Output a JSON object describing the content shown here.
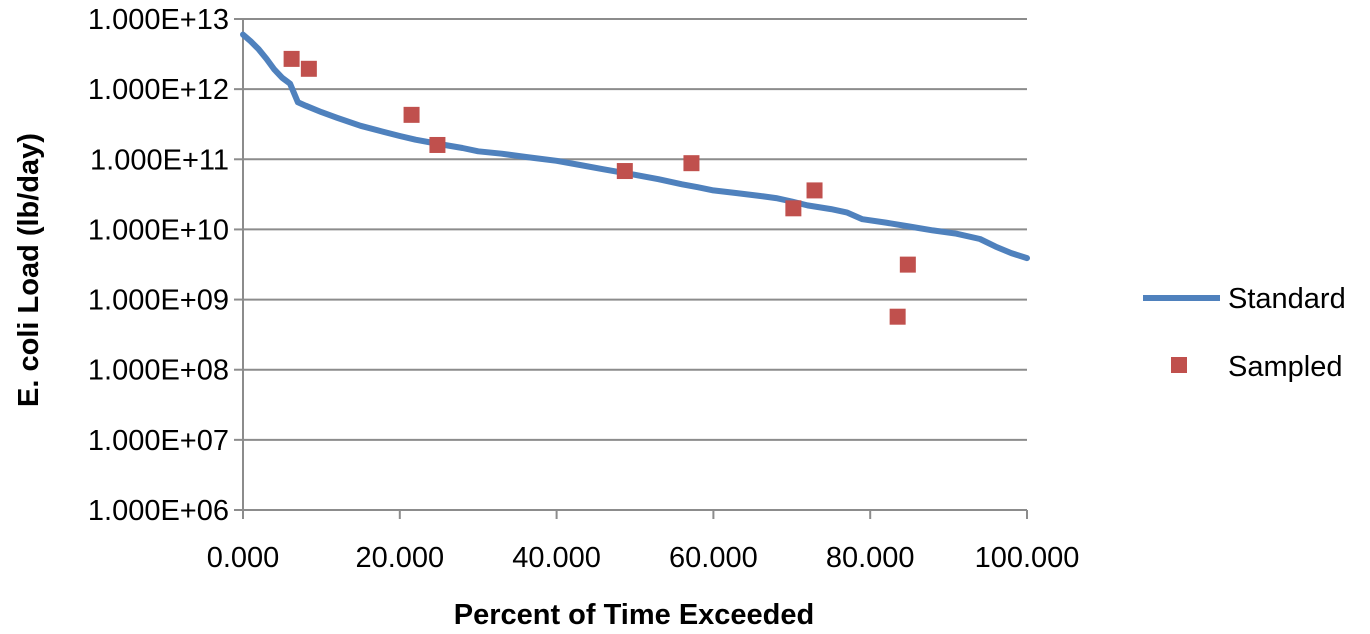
{
  "chart_data": {
    "type": "line",
    "title": "",
    "xlabel": "Percent of Time Exceeded",
    "ylabel": "E. coli Load (lb/day)",
    "x_scale": "linear",
    "y_scale": "log",
    "xlim": [
      0,
      100
    ],
    "ylim": [
      1000000,
      10000000000000
    ],
    "x_ticks": [
      0,
      20,
      40,
      60,
      80,
      100
    ],
    "x_tick_labels": [
      "0.000",
      "20.000",
      "40.000",
      "60.000",
      "80.000",
      "100.000"
    ],
    "y_ticks": [
      1000000,
      10000000,
      100000000,
      1000000000,
      10000000000,
      100000000000,
      1000000000000,
      10000000000000
    ],
    "y_tick_labels": [
      "1.000E+06",
      "1.000E+07",
      "1.000E+08",
      "1.000E+09",
      "1.000E+10",
      "1.000E+11",
      "1.000E+12",
      "1.000E+13"
    ],
    "grid": "horizontal",
    "legend_position": "right",
    "series": [
      {
        "name": "Standard",
        "kind": "line",
        "color": "#4F81BD",
        "points": [
          [
            0,
            6000000000000
          ],
          [
            1,
            4800000000000
          ],
          [
            2,
            3700000000000
          ],
          [
            3,
            2700000000000
          ],
          [
            4,
            1900000000000
          ],
          [
            5,
            1450000000000
          ],
          [
            6,
            1200000000000
          ],
          [
            7,
            650000000000
          ],
          [
            8,
            580000000000
          ],
          [
            10,
            470000000000
          ],
          [
            12,
            390000000000
          ],
          [
            15,
            300000000000
          ],
          [
            18,
            245000000000
          ],
          [
            20,
            215000000000
          ],
          [
            22,
            190000000000
          ],
          [
            25,
            165000000000
          ],
          [
            28,
            145000000000
          ],
          [
            30,
            130000000000
          ],
          [
            33,
            120000000000
          ],
          [
            36,
            108000000000
          ],
          [
            40,
            95000000000
          ],
          [
            43,
            83000000000
          ],
          [
            46,
            72000000000
          ],
          [
            50,
            60000000000
          ],
          [
            53,
            52000000000
          ],
          [
            56,
            44000000000
          ],
          [
            58,
            40000000000
          ],
          [
            60,
            36000000000
          ],
          [
            63,
            33000000000
          ],
          [
            66,
            30000000000
          ],
          [
            68,
            28000000000
          ],
          [
            70,
            25000000000
          ],
          [
            72,
            22000000000
          ],
          [
            75,
            19500000000
          ],
          [
            77,
            17500000000
          ],
          [
            79,
            14000000000
          ],
          [
            82,
            12500000000
          ],
          [
            85,
            11000000000
          ],
          [
            88,
            9700000000
          ],
          [
            91,
            8700000000
          ],
          [
            94,
            7300000000
          ],
          [
            96,
            5700000000
          ],
          [
            98,
            4600000000
          ],
          [
            100,
            3900000000
          ]
        ]
      },
      {
        "name": "Sampled",
        "kind": "scatter",
        "color": "#C0504D",
        "points": [
          [
            6.2,
            2700000000000
          ],
          [
            8.4,
            1950000000000
          ],
          [
            21.5,
            430000000000
          ],
          [
            24.8,
            160000000000
          ],
          [
            48.7,
            68000000000
          ],
          [
            57.2,
            88000000000
          ],
          [
            70.2,
            20000000000
          ],
          [
            72.9,
            36000000000
          ],
          [
            83.5,
            570000000
          ],
          [
            84.8,
            3150000000
          ]
        ]
      }
    ]
  }
}
